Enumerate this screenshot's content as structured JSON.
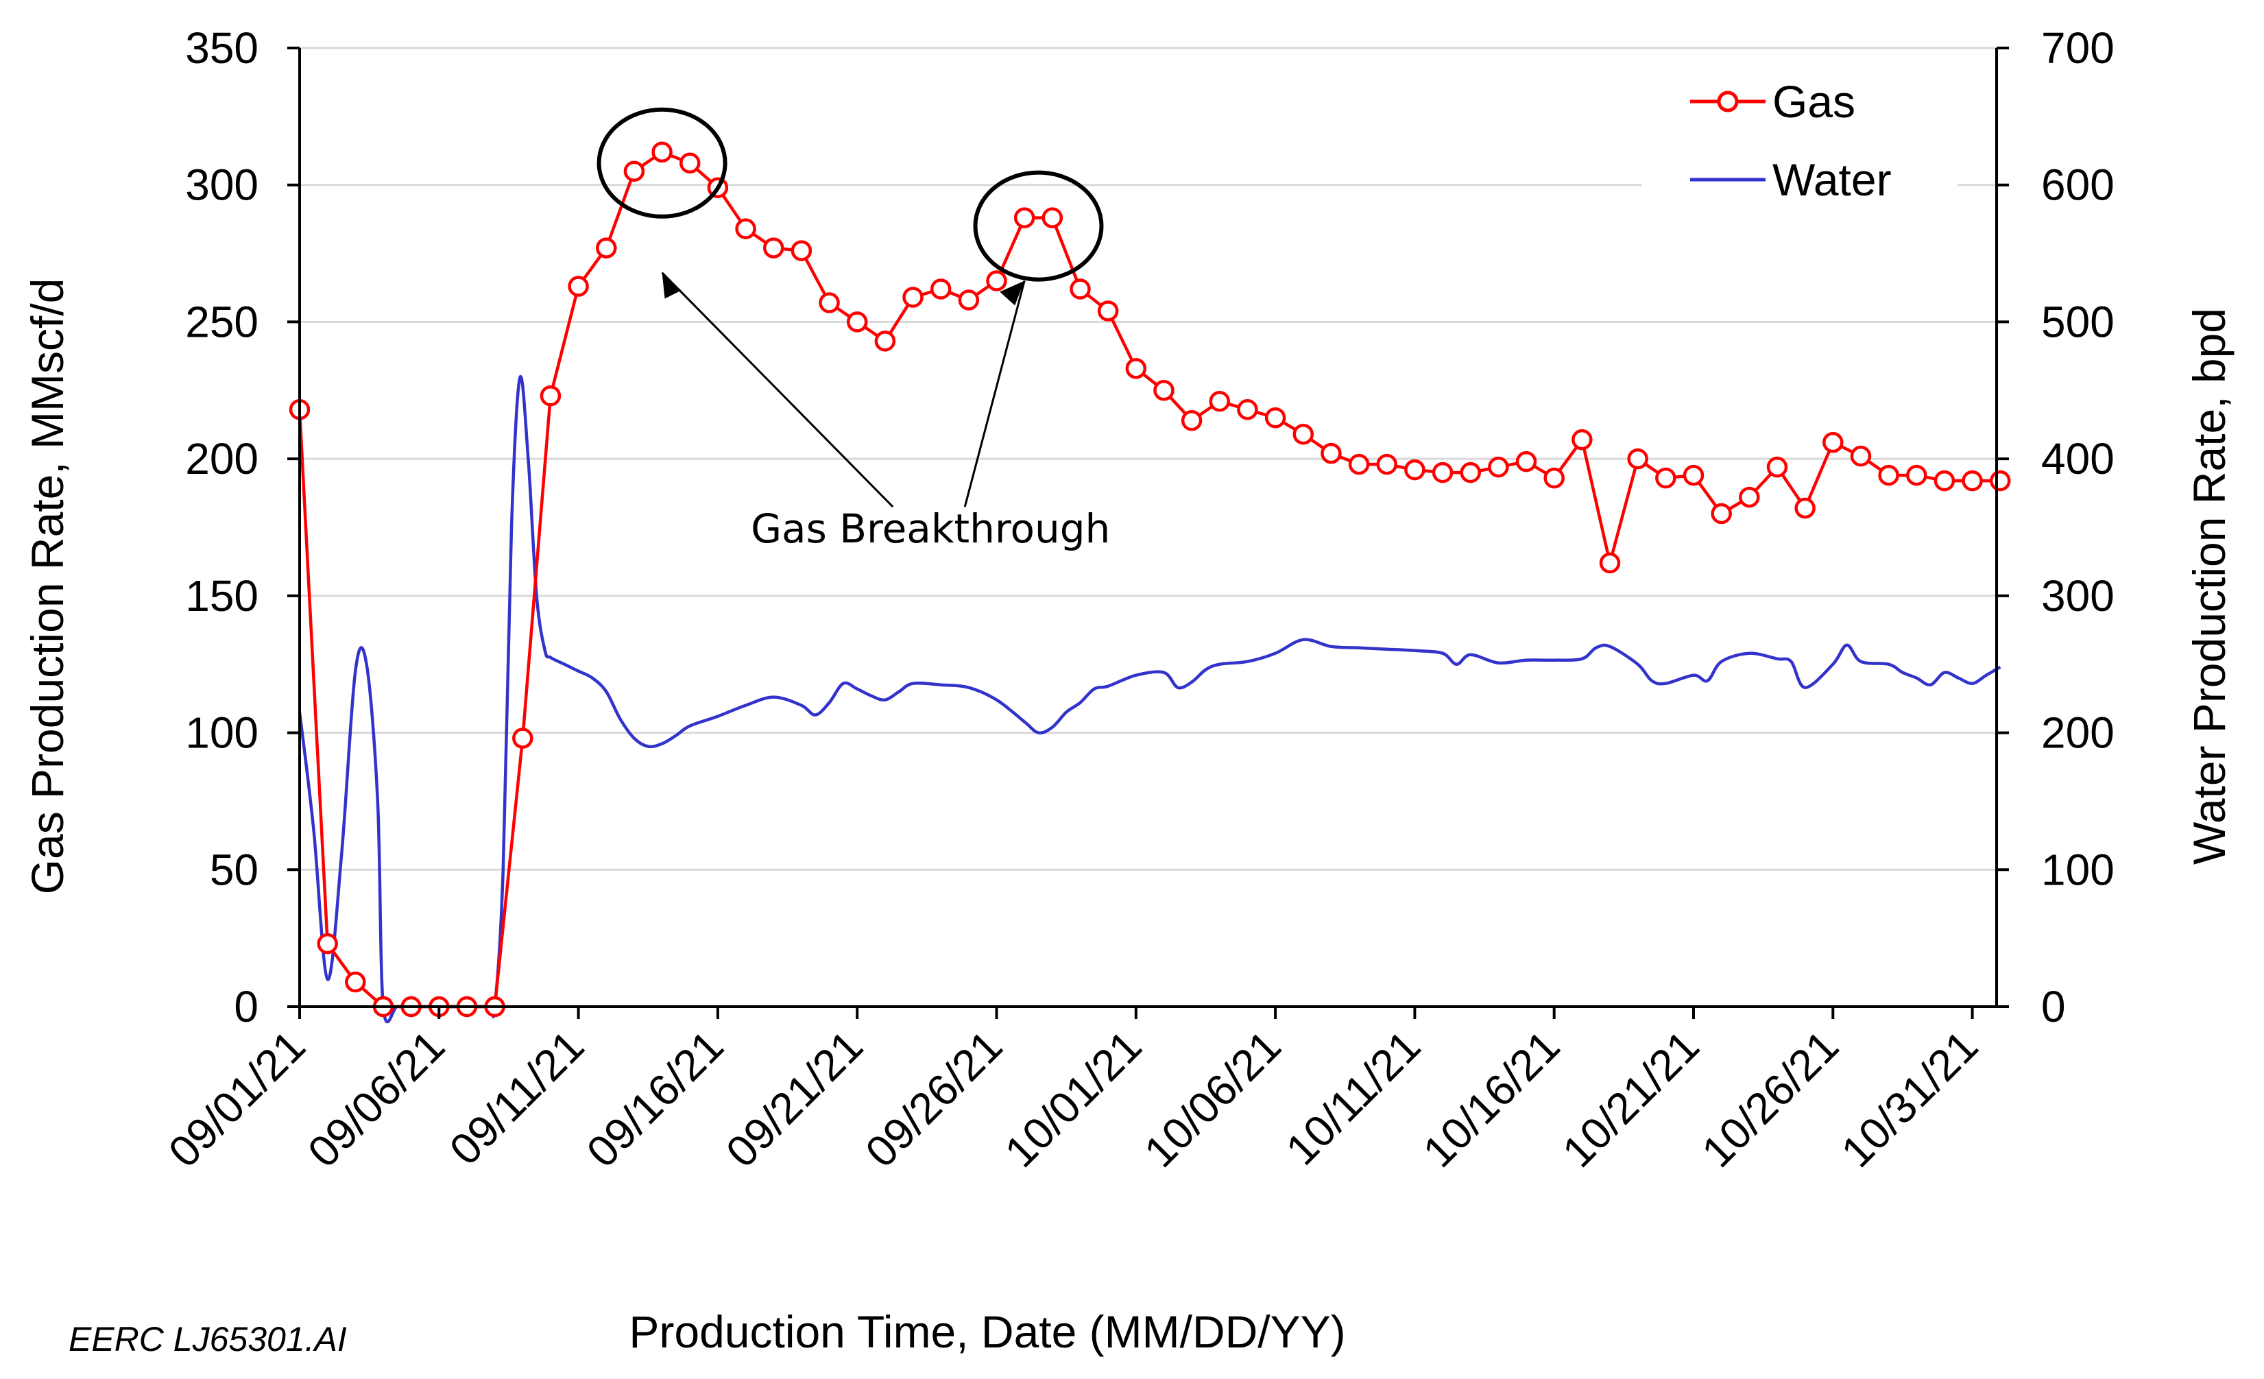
{
  "chart_data": {
    "type": "line",
    "credit": "EERC LJ65301.AI",
    "xlabel": "Production Time, Date (MM/DD/YY)",
    "ylabel": "Gas Production Rate, MMscf/d",
    "y2label": "Water Production Rate, bpd",
    "x_day_range": [
      0,
      61
    ],
    "x_ticks": [
      {
        "day": 0,
        "label": "09/01/21"
      },
      {
        "day": 5,
        "label": "09/06/21"
      },
      {
        "day": 10,
        "label": "09/11/21"
      },
      {
        "day": 15,
        "label": "09/16/21"
      },
      {
        "day": 20,
        "label": "09/21/21"
      },
      {
        "day": 25,
        "label": "09/26/21"
      },
      {
        "day": 30,
        "label": "10/01/21"
      },
      {
        "day": 35,
        "label": "10/06/21"
      },
      {
        "day": 40,
        "label": "10/11/21"
      },
      {
        "day": 45,
        "label": "10/16/21"
      },
      {
        "day": 50,
        "label": "10/21/21"
      },
      {
        "day": 55,
        "label": "10/26/21"
      },
      {
        "day": 60,
        "label": "10/31/21"
      }
    ],
    "ylim": [
      0,
      350
    ],
    "y_ticks": [
      "0",
      "50",
      "100",
      "150",
      "200",
      "250",
      "300",
      "350"
    ],
    "y2lim": [
      0,
      700
    ],
    "y2_ticks": [
      "0",
      "100",
      "200",
      "300",
      "400",
      "500",
      "600",
      "700"
    ],
    "grid": true,
    "legend_position": "top-right",
    "series": [
      {
        "name": "Gas",
        "axis": "left",
        "color": "#ff0000",
        "marker": "open-circle",
        "x": [
          0,
          1,
          2,
          3,
          4,
          5,
          6,
          7,
          8,
          9,
          10,
          11,
          12,
          13,
          14,
          15,
          16,
          17,
          18,
          19,
          20,
          21,
          22,
          23,
          24,
          25,
          26,
          27,
          28,
          29,
          30,
          31,
          32,
          33,
          34,
          35,
          36,
          37,
          38,
          39,
          40,
          41,
          42,
          43,
          44,
          45,
          46,
          47,
          48,
          49,
          50,
          51,
          52,
          53,
          54,
          55,
          56,
          57,
          58,
          59,
          60,
          61
        ],
        "values": [
          218,
          23,
          9,
          0,
          0,
          0,
          0,
          0,
          98,
          223,
          263,
          277,
          305,
          312,
          308,
          299,
          284,
          277,
          276,
          257,
          250,
          243,
          259,
          262,
          258,
          265,
          288,
          288,
          262,
          254,
          233,
          225,
          214,
          221,
          218,
          215,
          209,
          202,
          198,
          198,
          196,
          195,
          195,
          197,
          199,
          193,
          207,
          162,
          200,
          193,
          194,
          180,
          186,
          197,
          182,
          206,
          201,
          194,
          194,
          192,
          192,
          192
        ]
      },
      {
        "name": "Water",
        "axis": "right",
        "color": "#3333cc",
        "marker": "none",
        "x": [
          0,
          0.5,
          1,
          1.5,
          2,
          2.4,
          2.8,
          3,
          3.5,
          4,
          5,
          6,
          6.8,
          7,
          7.3,
          7.6,
          7.9,
          8.2,
          8.5,
          8.8,
          9,
          9.5,
          10,
          10.5,
          11,
          11.5,
          12,
          12.5,
          13,
          13.5,
          14,
          15,
          16,
          17,
          18,
          18.5,
          19,
          19.5,
          20,
          20.5,
          21,
          21.5,
          22,
          23,
          24,
          25,
          26,
          26.5,
          27,
          27.5,
          28,
          28.5,
          29,
          30,
          31,
          31.5,
          32,
          32.5,
          33,
          34,
          35,
          36,
          37,
          38,
          39,
          40,
          41,
          41.5,
          42,
          43,
          44,
          45,
          46,
          46.5,
          47,
          48,
          48.5,
          49,
          50,
          50.5,
          51,
          52,
          53,
          53.5,
          54,
          55,
          55.5,
          56,
          57,
          57.5,
          58,
          58.5,
          59,
          59.5,
          60,
          60.5,
          61
        ],
        "values": [
          215,
          130,
          20,
          110,
          245,
          250,
          150,
          0,
          0,
          0,
          0,
          0,
          0,
          0,
          100,
          350,
          459,
          400,
          300,
          260,
          255,
          250,
          245,
          240,
          230,
          210,
          196,
          190,
          192,
          198,
          205,
          212,
          220,
          226,
          220,
          213,
          222,
          236,
          232,
          227,
          224,
          230,
          236,
          235,
          233,
          224,
          208,
          200,
          204,
          215,
          222,
          232,
          234,
          242,
          244,
          233,
          237,
          246,
          250,
          252,
          258,
          268,
          263,
          262,
          261,
          260,
          258,
          250,
          257,
          251,
          253,
          253,
          254,
          262,
          263,
          250,
          238,
          236,
          242,
          238,
          252,
          258,
          254,
          252,
          233,
          250,
          264,
          252,
          250,
          244,
          240,
          235,
          244,
          240,
          236,
          242,
          248
        ]
      }
    ],
    "annotations": [
      {
        "text": "Gas Breakthrough",
        "x_day": 15.5,
        "y_gas": 185
      },
      {
        "type": "ellipse",
        "x_day": 13,
        "y_gas": 308
      },
      {
        "type": "ellipse",
        "x_day": 26.5,
        "y_gas": 285
      }
    ]
  }
}
